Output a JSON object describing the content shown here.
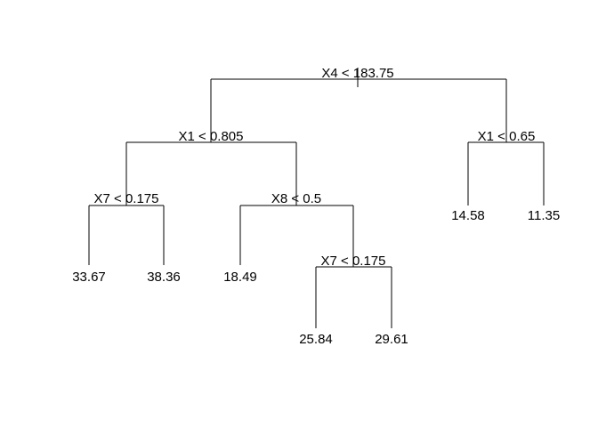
{
  "tree": {
    "splits": {
      "root": "X4 < 183.75",
      "left": "X1 < 0.805",
      "right": "X1 < 0.65",
      "left_left": "X7 < 0.175",
      "left_right": "X8 < 0.5",
      "left_right_right": "X7 < 0.175"
    },
    "leaves": {
      "left_left_left": "33.67",
      "left_left_right": "38.36",
      "left_right_left": "18.49",
      "left_right_right_left": "25.84",
      "left_right_right_right": "29.61",
      "right_left": "14.58",
      "right_right": "11.35"
    }
  }
}
